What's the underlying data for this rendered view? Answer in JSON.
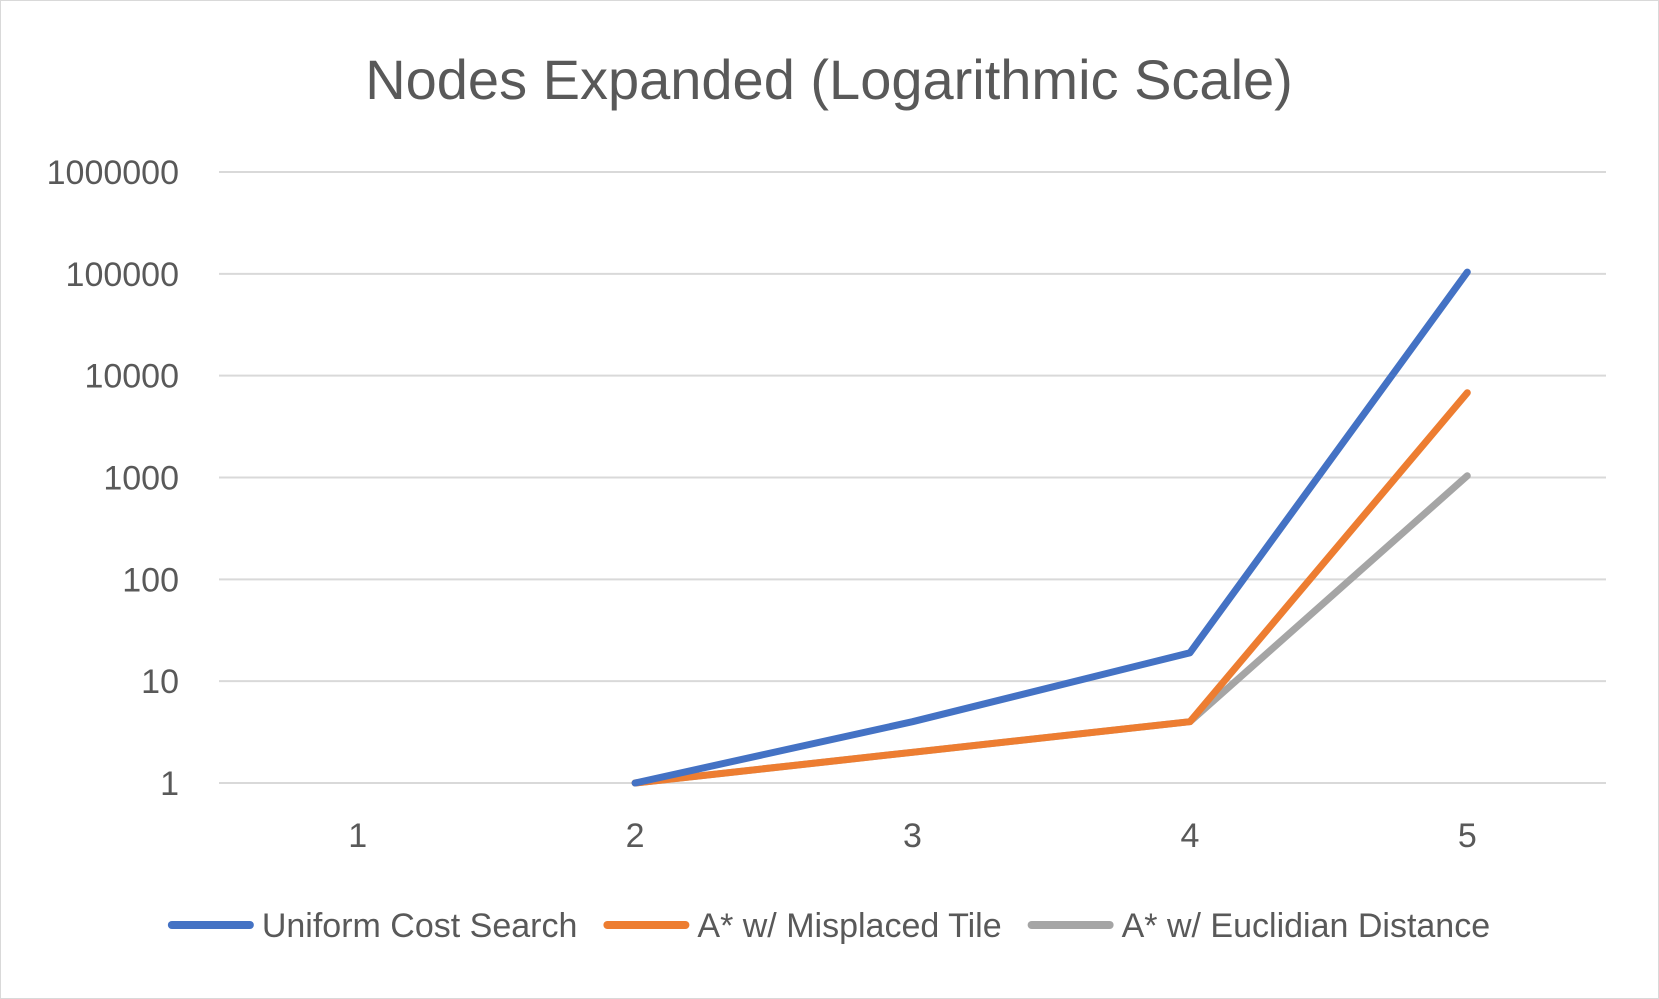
{
  "chart_data": {
    "type": "line",
    "title": "Nodes Expanded (Logarithmic Scale)",
    "xlabel": "",
    "ylabel": "",
    "y_scale": "log",
    "ylim": [
      1,
      1000000
    ],
    "grid": true,
    "legend_position": "bottom",
    "x_categories": [
      "1",
      "2",
      "3",
      "4",
      "5"
    ],
    "y_tick_labels": [
      "1",
      "10",
      "100",
      "1000",
      "10000",
      "100000",
      "1000000"
    ],
    "y_tick_values": [
      1,
      10,
      100,
      1000,
      10000,
      100000,
      1000000
    ],
    "series": [
      {
        "name": "Uniform Cost Search",
        "color": "#4472c4",
        "values": [
          null,
          1,
          4,
          19,
          104000
        ]
      },
      {
        "name": "A* w/ Misplaced Tile",
        "color": "#ed7d31",
        "values": [
          null,
          1,
          2,
          4,
          6800
        ]
      },
      {
        "name": "A* w/ Euclidian Distance",
        "color": "#a5a5a5",
        "values": [
          null,
          1,
          2,
          4,
          1040
        ]
      }
    ]
  }
}
